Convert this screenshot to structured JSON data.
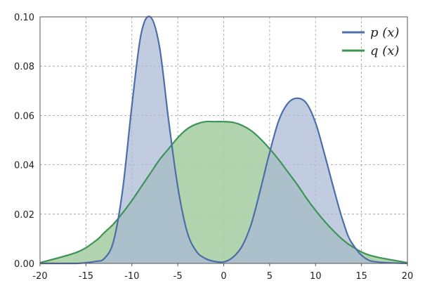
{
  "chart_data": {
    "type": "area",
    "title": "",
    "xlabel": "",
    "ylabel": "",
    "xlim": [
      -20,
      20
    ],
    "ylim": [
      0,
      0.1
    ],
    "xticks": [
      -20,
      -15,
      -10,
      -5,
      0,
      5,
      10,
      15,
      20
    ],
    "xtick_labels": [
      "-20",
      "-15",
      "-10",
      "-5",
      "0",
      "5",
      "10",
      "15",
      "20"
    ],
    "yticks": [
      0,
      0.02,
      0.04,
      0.06,
      0.08,
      0.1
    ],
    "ytick_labels": [
      "0.00",
      "0.02",
      "0.04",
      "0.06",
      "0.08",
      "0.10"
    ],
    "grid": true,
    "legend_position": "top-right",
    "x": [
      -20,
      -16,
      -14,
      -13,
      -12,
      -11,
      -10,
      -9,
      -8,
      -7,
      -6,
      -5,
      -4,
      -3,
      -2,
      -1,
      0,
      1,
      2,
      3,
      4,
      5,
      6,
      7,
      8,
      9,
      10,
      11,
      12,
      13,
      14,
      16,
      20
    ],
    "series": [
      {
        "name": "p (x)",
        "color": "#4c6ea8",
        "fill": "#a9b8d6",
        "values": [
          0.0,
          0.0,
          0.0008,
          0.002,
          0.009,
          0.03,
          0.064,
          0.093,
          0.1,
          0.088,
          0.058,
          0.031,
          0.013,
          0.005,
          0.002,
          0.0008,
          0.0006,
          0.0025,
          0.007,
          0.016,
          0.03,
          0.045,
          0.058,
          0.065,
          0.067,
          0.065,
          0.057,
          0.044,
          0.03,
          0.017,
          0.008,
          0.001,
          0.0
        ]
      },
      {
        "name": "q (x)",
        "color": "#3d9456",
        "fill": "#a8cfa5",
        "values": [
          0.0003,
          0.0045,
          0.009,
          0.0125,
          0.016,
          0.0205,
          0.0255,
          0.031,
          0.0365,
          0.042,
          0.0465,
          0.051,
          0.0545,
          0.0565,
          0.0575,
          0.0575,
          0.0575,
          0.0572,
          0.056,
          0.0538,
          0.0505,
          0.0465,
          0.042,
          0.037,
          0.032,
          0.0265,
          0.0215,
          0.017,
          0.013,
          0.0095,
          0.0068,
          0.0032,
          0.0003
        ]
      }
    ]
  }
}
